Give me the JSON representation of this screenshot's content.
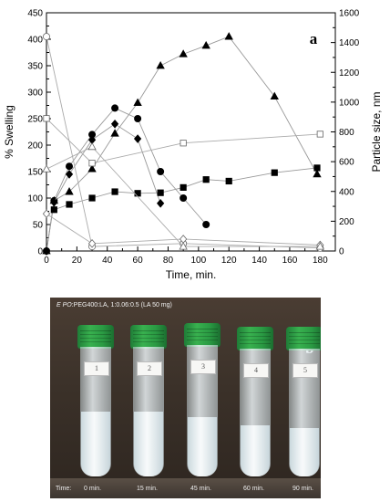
{
  "chart_data": {
    "type": "scatter",
    "panel_label": "a",
    "xlabel": "Time, min.",
    "ylabel_left": "% Swelling",
    "ylabel_right": "Particle size, nm",
    "xlim": [
      0,
      190
    ],
    "ylim_left": [
      0,
      450
    ],
    "ylim_right": [
      0,
      1600
    ],
    "x_ticks": [
      "0",
      "20",
      "40",
      "60",
      "80",
      "100",
      "120",
      "140",
      "160",
      "180"
    ],
    "y_left_ticks": [
      "0",
      "50",
      "100",
      "150",
      "200",
      "250",
      "300",
      "350",
      "400",
      "450"
    ],
    "y_right_ticks": [
      "0",
      "200",
      "400",
      "600",
      "800",
      "1000",
      "1200",
      "1400",
      "1600"
    ],
    "series": [
      {
        "axis": "left",
        "marker": "filled-triangle",
        "x": [
          0,
          5,
          15,
          30,
          45,
          60,
          75,
          90,
          105,
          120,
          150,
          178
        ],
        "y": [
          0,
          95,
          112,
          155,
          222,
          280,
          350,
          372,
          388,
          405,
          292,
          145
        ]
      },
      {
        "axis": "left",
        "marker": "filled-circle",
        "x": [
          0,
          5,
          15,
          30,
          45,
          60,
          75,
          90,
          105
        ],
        "y": [
          0,
          95,
          160,
          220,
          270,
          250,
          150,
          100,
          50
        ]
      },
      {
        "axis": "left",
        "marker": "filled-diamond",
        "x": [
          0,
          5,
          15,
          30,
          45,
          60,
          75
        ],
        "y": [
          0,
          92,
          145,
          210,
          240,
          212,
          90
        ]
      },
      {
        "axis": "left",
        "marker": "filled-square",
        "x": [
          5,
          15,
          30,
          45,
          60,
          75,
          90,
          105,
          120,
          150,
          178
        ],
        "y": [
          78,
          88,
          100,
          112,
          109,
          110,
          120,
          135,
          132,
          148,
          157
        ]
      },
      {
        "axis": "right",
        "marker": "open-circle",
        "x": [
          0,
          30,
          90,
          180
        ],
        "y": [
          1440,
          30,
          50,
          20
        ]
      },
      {
        "axis": "right",
        "marker": "open-square",
        "x": [
          0,
          30,
          90,
          180
        ],
        "y": [
          890,
          590,
          725,
          785
        ]
      },
      {
        "axis": "right",
        "marker": "open-diamond",
        "x": [
          0,
          30,
          90,
          180
        ],
        "y": [
          250,
          50,
          80,
          40
        ]
      },
      {
        "axis": "right",
        "marker": "open-triangle",
        "x": [
          0,
          30,
          90,
          180
        ],
        "y": [
          550,
          700,
          30,
          30
        ]
      }
    ],
    "grid": false
  },
  "photo": {
    "panel_label": "b",
    "caption_italic": "E PO",
    "caption_rest": ":PEG400:LA, 1:0.06:0.5 (LA 50 mg)",
    "time_title": "Time:",
    "tubes": [
      {
        "number": "1",
        "time": "0 min.",
        "fill": 0.5
      },
      {
        "number": "2",
        "time": "15 min.",
        "fill": 0.5
      },
      {
        "number": "3",
        "time": "45 min.",
        "fill": 0.45
      },
      {
        "number": "4",
        "time": "60 min.",
        "fill": 0.4
      },
      {
        "number": "5",
        "time": "90 min.",
        "fill": 0.38
      }
    ]
  }
}
